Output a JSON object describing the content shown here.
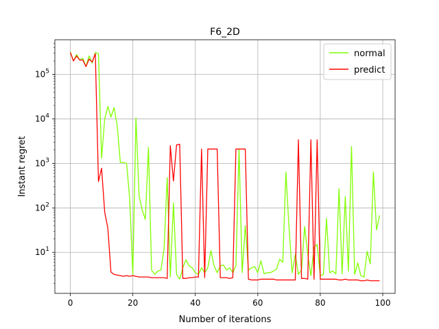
{
  "chart_data": {
    "type": "line",
    "title": "F6_2D",
    "xlabel": "Number of iterations",
    "ylabel": "Instant regret",
    "xlim": [
      -4.95,
      103.95
    ],
    "ylim": [
      1.2,
      600000
    ],
    "yscale": "log",
    "grid": true,
    "legend_position": "top-right",
    "x_ticks": [
      0,
      20,
      40,
      60,
      80,
      100
    ],
    "x_tick_labels": [
      "0",
      "20",
      "40",
      "60",
      "80",
      "100"
    ],
    "y_ticks": [
      10,
      100,
      1000,
      10000,
      100000
    ],
    "y_tick_labels": [
      "10^1",
      "10^2",
      "10^3",
      "10^4",
      "10^5"
    ],
    "series": [
      {
        "name": "normal",
        "color": "#7fff00",
        "values": [
          320000,
          200000,
          280000,
          210000,
          230000,
          150000,
          260000,
          180000,
          310000,
          290000,
          1300,
          10000,
          19000,
          11000,
          18000,
          7000,
          1050,
          1050,
          1000,
          160,
          3.2,
          10500,
          190,
          90,
          55,
          2300,
          4,
          3.2,
          3.8,
          4,
          12,
          480,
          2.8,
          130,
          3.2,
          2.5,
          4.5,
          6.8,
          5,
          4.5,
          3.5,
          3.2,
          4.5,
          3.5,
          4.5,
          11,
          5,
          3.5,
          5,
          5.2,
          4,
          4.5,
          3.5,
          5,
          2100,
          3.5,
          40,
          4,
          4.5,
          4.8,
          3.5,
          6.5,
          3.3,
          3.5,
          3.5,
          3.8,
          4.2,
          7,
          6,
          640,
          35,
          3.5,
          9,
          3.2,
          4,
          38,
          9,
          3,
          13,
          15,
          3,
          3.2,
          58,
          3.5,
          3.8,
          3.3,
          270,
          3.3,
          180,
          3.8,
          2400,
          3.2,
          5.8,
          3,
          2.8,
          10.5,
          5.5,
          640,
          32,
          68
        ]
      },
      {
        "name": "predict",
        "color": "#ff0000",
        "values": [
          310000,
          200000,
          260000,
          210000,
          210000,
          150000,
          220000,
          190000,
          290000,
          390,
          780,
          80,
          35,
          3.6,
          3.2,
          3.1,
          3,
          2.9,
          3,
          2.9,
          3,
          2.9,
          2.8,
          2.8,
          2.8,
          2.8,
          2.7,
          2.7,
          2.7,
          2.7,
          2.7,
          2.6,
          2500,
          400,
          2600,
          2700,
          2.6,
          2.6,
          2.7,
          2.7,
          2.8,
          2.8,
          2100,
          2.7,
          2100,
          2100,
          2100,
          2100,
          2.7,
          2.7,
          2.7,
          2.6,
          2.7,
          2100,
          2100,
          2100,
          2100,
          2.5,
          2.4,
          2.4,
          2.4,
          2.5,
          2.5,
          2.5,
          2.5,
          2.5,
          2.4,
          2.4,
          2.4,
          2.4,
          2.4,
          2.4,
          2.4,
          3400,
          2.6,
          2.6,
          2.5,
          3400,
          2.5,
          3400,
          2.5,
          2.5,
          2.5,
          2.5,
          2.5,
          2.5,
          2.4,
          2.4,
          2.5,
          2.4,
          2.4,
          2.4,
          2.4,
          2.3,
          2.3,
          2.4,
          2.3,
          2.3,
          2.3,
          2.3
        ]
      }
    ]
  }
}
